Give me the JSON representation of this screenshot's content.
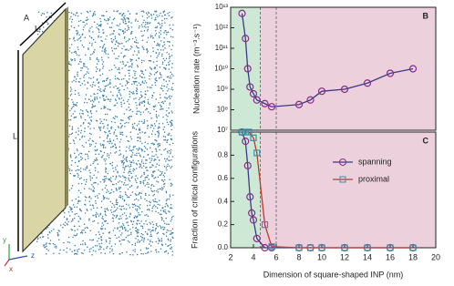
{
  "illustration": {
    "labels": [
      "A",
      "L",
      "L"
    ],
    "axes": [
      "y",
      "z",
      "x"
    ]
  },
  "chart_data": [
    {
      "type": "line",
      "panel": "B",
      "ylabel": "Nucleation rate (m⁻³.s⁻¹)",
      "ylog": true,
      "xlim": [
        2,
        20
      ],
      "ylim": [
        10000000.0,
        10000000000000.0
      ],
      "yticks": [
        {
          "value": 10000000.0,
          "label": "10⁷"
        },
        {
          "value": 100000000.0,
          "label": "10⁸"
        },
        {
          "value": 1000000000.0,
          "label": "10⁹"
        },
        {
          "value": 10000000000.0,
          "label": "10¹⁰"
        },
        {
          "value": 100000000000.0,
          "label": "10¹¹"
        },
        {
          "value": 1000000000000.0,
          "label": "10¹²"
        },
        {
          "value": 10000000000000.0,
          "label": "10¹³"
        }
      ],
      "regions": [
        {
          "from": 2,
          "to": 4.6,
          "color": "#cde8d4"
        },
        {
          "from": 4.6,
          "to": 20,
          "color": "#ecd0dc"
        }
      ],
      "vlines": [
        {
          "x": 4.6,
          "color": "#3a9a5a"
        },
        {
          "x": 6,
          "color": "#777"
        }
      ],
      "series": [
        {
          "name": "spanning",
          "color": "#3a3a8c",
          "marker": "circle",
          "marker_color": "#8b2a8b",
          "x": [
            3.0,
            3.3,
            3.5,
            3.7,
            4.0,
            4.3,
            5.0,
            5.6,
            8,
            9,
            10,
            12,
            14,
            16,
            18
          ],
          "values": [
            5000000000000.0,
            300000000000.0,
            10000000000.0,
            1300000000.0,
            600000000.0,
            300000000.0,
            200000000.0,
            140000000.0,
            180000000.0,
            300000000.0,
            800000000.0,
            1000000000.0,
            2000000000.0,
            6000000000.0,
            10000000000.0
          ]
        }
      ]
    },
    {
      "type": "line",
      "panel": "C",
      "ylabel": "Fraction of critical configurations",
      "xlabel": "Dimension of square-shaped INP (nm)",
      "xlim": [
        2,
        20
      ],
      "ylim": [
        0,
        1
      ],
      "xticks": [
        2,
        4,
        6,
        8,
        10,
        12,
        14,
        16,
        18,
        20
      ],
      "yticks": [
        {
          "value": 0,
          "label": "0.0"
        },
        0.2,
        0.4,
        0.6,
        0.8
      ],
      "regions": [
        {
          "from": 2,
          "to": 4.6,
          "color": "#cde8d4"
        },
        {
          "from": 4.6,
          "to": 20,
          "color": "#ecd0dc"
        }
      ],
      "vlines": [
        {
          "x": 4.6,
          "color": "#3a9a5a"
        },
        {
          "x": 6,
          "color": "#777"
        }
      ],
      "series": [
        {
          "name": "spanning",
          "color": "#3a3a8c",
          "marker": "circle",
          "marker_color": "#8b2a8b",
          "x": [
            3.0,
            3.3,
            3.5,
            3.7,
            3.85,
            4.0,
            4.3,
            5.0,
            5.6,
            8,
            9,
            10,
            12,
            14,
            16,
            18
          ],
          "values": [
            1.0,
            0.92,
            0.71,
            0.44,
            0.3,
            0.24,
            0.08,
            0,
            0,
            0,
            0,
            0,
            0,
            0,
            0,
            0
          ]
        },
        {
          "name": "proximal",
          "color": "#c0392b",
          "marker": "square",
          "marker_color": "#3a8fa8",
          "x": [
            3.0,
            3.3,
            3.6,
            4.0,
            4.3,
            5.0,
            5.6,
            8,
            9,
            10,
            12,
            14,
            16,
            18
          ],
          "values": [
            1,
            1,
            1,
            0.95,
            0.82,
            0.2,
            0.01,
            0,
            0,
            0,
            0,
            0,
            0,
            0
          ]
        }
      ]
    }
  ]
}
